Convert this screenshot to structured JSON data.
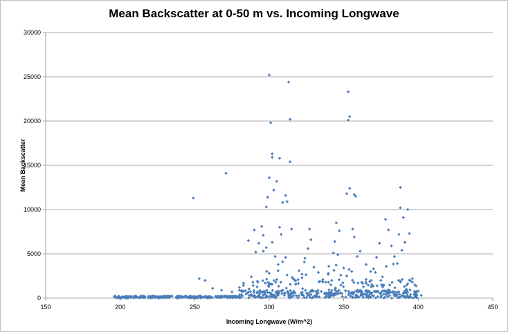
{
  "chart_data": {
    "type": "scatter",
    "title": "Mean Backscatter at 0-50 m vs. Incoming Longwave",
    "xlabel": "Incoming Longwave (W/m^2)",
    "ylabel": "Mean Backscatter",
    "xlim": [
      150,
      450
    ],
    "ylim": [
      0,
      30000
    ],
    "xticks": [
      "150",
      "200",
      "250",
      "300",
      "350",
      "400",
      "450"
    ],
    "yticks": [
      "0",
      "5000",
      "10000",
      "15000",
      "20000",
      "25000",
      "30000"
    ],
    "grid": "horizontal",
    "legend": "none",
    "marker_color": "#4a7ebb",
    "series": [
      {
        "x": [
          249,
          271,
          300,
          301,
          313,
          314,
          302,
          302,
          300,
          307,
          314,
          353,
          354,
          353,
          354,
          352,
          357,
          358,
          388,
          388,
          390,
          393,
          305,
          303,
          309,
          299,
          298,
          311,
          312,
          295,
          307,
          296,
          308,
          315,
          286,
          290,
          291,
          293,
          296,
          298,
          302,
          304,
          306,
          309,
          311,
          327,
          328,
          326,
          345,
          347,
          344,
          343,
          340,
          346,
          356,
          357,
          359,
          361,
          365,
          372,
          374,
          378,
          380,
          382,
          384,
          386,
          387,
          389,
          391,
          394,
          396,
          320,
          322,
          324,
          330,
          333,
          336,
          338,
          348,
          350,
          318,
          316,
          368,
          370,
          376,
          253,
          257,
          262,
          268,
          275,
          280,
          283,
          288,
          292,
          300,
          306,
          312,
          322,
          334,
          352,
          362,
          376,
          392,
          398,
          402
        ],
        "y": [
          11300,
          14100,
          25200,
          19800,
          24400,
          20200,
          16300,
          15900,
          13600,
          15800,
          15400,
          23300,
          20500,
          20100,
          12400,
          11800,
          11700,
          11500,
          12500,
          10200,
          9100,
          10000,
          13200,
          12200,
          10800,
          11400,
          10300,
          11600,
          10900,
          8100,
          8000,
          7100,
          7200,
          7800,
          6500,
          7700,
          5200,
          6200,
          5300,
          5700,
          6300,
          4700,
          3800,
          4100,
          4600,
          7800,
          6600,
          5600,
          8500,
          7600,
          6400,
          5100,
          3600,
          4900,
          7800,
          6900,
          4700,
          5300,
          3800,
          4600,
          6200,
          8900,
          7700,
          5900,
          4700,
          3900,
          7200,
          5400,
          6300,
          7300,
          2200,
          3100,
          2700,
          4500,
          3500,
          2900,
          2100,
          1800,
          2600,
          3400,
          1600,
          2200,
          3000,
          3300,
          2400,
          2200,
          2000,
          1100,
          900,
          700,
          1200,
          800,
          2400,
          1900,
          2800,
          3100,
          2600,
          2300,
          1900,
          2500,
          1800,
          1400,
          1000,
          500,
          300
        ]
      }
    ]
  }
}
